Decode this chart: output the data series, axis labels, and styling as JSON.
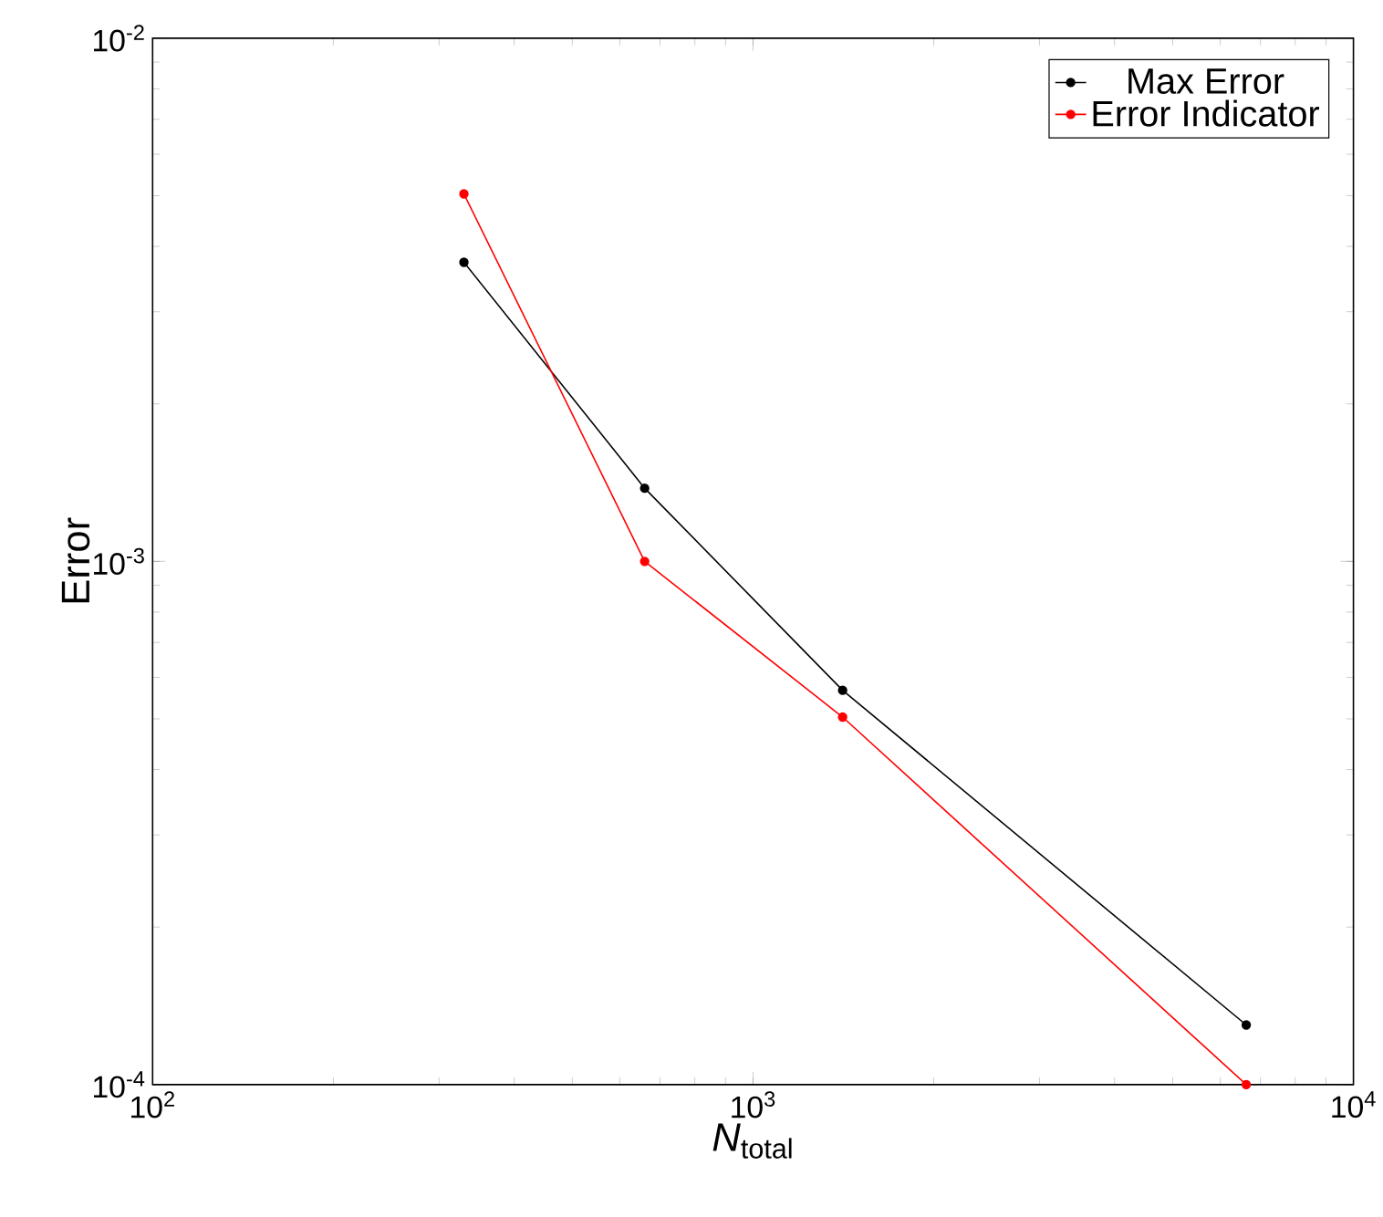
{
  "chart_data": {
    "type": "line",
    "xlabel": "*N*$_{total}$",
    "ylabel": "Error",
    "log": "xy",
    "xlim": [
      100,
      10000
    ],
    "ylim": [
      0.0001,
      0.01
    ],
    "xticks": [
      {
        "value": 100,
        "label": "10$^{2}$"
      },
      {
        "value": 1000,
        "label": "10$^{3}$"
      },
      {
        "value": 10000,
        "label": "10$^{4}$"
      }
    ],
    "yticks": [
      {
        "value": 0.0001,
        "label": "10$^{-4}$"
      },
      {
        "value": 0.001,
        "label": "10$^{-3}$"
      },
      {
        "value": 0.01,
        "label": "10$^{-2}$"
      }
    ],
    "x": [
      330,
      660,
      1410,
      6630
    ],
    "marker": "circle",
    "line_style": "solid",
    "legend": "top right",
    "series": [
      {
        "name": "Max Error",
        "color": "#000000",
        "values": [
          0.00373,
          0.00138,
          0.000567,
          0.00013
        ]
      },
      {
        "name": "Error Indicator",
        "color": "#ff0000",
        "values": [
          0.00504,
          0.001,
          0.000504,
          0.0001
        ]
      }
    ]
  }
}
